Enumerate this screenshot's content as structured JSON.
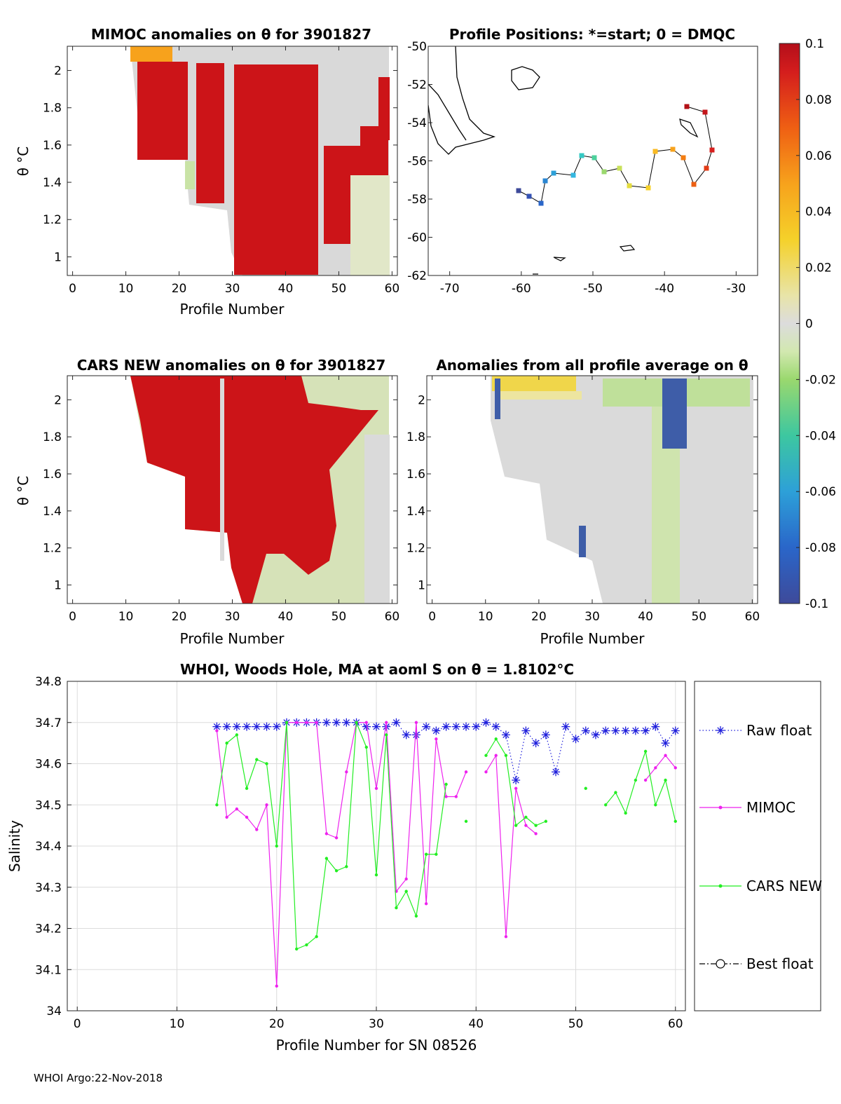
{
  "footer": "WHOI Argo:22-Nov-2018",
  "colors": {
    "raw_float": "#1f1fdc",
    "mimoc": "#ee22ee",
    "cars_new": "#22ee22",
    "best_float": "#000000"
  },
  "panels": {
    "mimoc": {
      "title": "MIMOC anomalies on θ  for 3901827",
      "xlabel": "Profile Number",
      "ylabel": "θ °C",
      "xticks": [
        "0",
        "10",
        "20",
        "30",
        "40",
        "50",
        "60"
      ],
      "yticks": [
        "1",
        "1.2",
        "1.4",
        "1.6",
        "1.8",
        "2"
      ],
      "xlim": [
        -1,
        61
      ],
      "ylim": [
        0.9,
        2.13
      ]
    },
    "map": {
      "title": "Profile Positions: *=start; 0 = DMQC",
      "xticks": [
        "-70",
        "-60",
        "-50",
        "-40",
        "-30"
      ],
      "yticks": [
        "-50",
        "-52",
        "-54",
        "-56",
        "-58",
        "-60",
        "-62"
      ],
      "xlim": [
        -73,
        -27
      ],
      "ylim": [
        -62,
        -50
      ]
    },
    "cars": {
      "title": "CARS NEW anomalies on θ for 3901827",
      "xlabel": "Profile Number",
      "ylabel": "θ °C",
      "xticks": [
        "0",
        "10",
        "20",
        "30",
        "40",
        "50",
        "60"
      ],
      "yticks": [
        "1",
        "1.2",
        "1.4",
        "1.6",
        "1.8",
        "2"
      ],
      "xlim": [
        -1,
        61
      ],
      "ylim": [
        0.9,
        2.13
      ]
    },
    "avg": {
      "title": "Anomalies from all profile average on θ",
      "xlabel": "Profile Number",
      "xticks": [
        "0",
        "10",
        "20",
        "30",
        "40",
        "50",
        "60"
      ],
      "yticks": [
        "1",
        "1.2",
        "1.4",
        "1.6",
        "1.8",
        "2"
      ],
      "xlim": [
        -1,
        61
      ],
      "ylim": [
        0.9,
        2.13
      ]
    }
  },
  "colorbar": {
    "ticks": [
      "0.1",
      "0.08",
      "0.06",
      "0.04",
      "0.02",
      "0",
      "-0.02",
      "-0.04",
      "-0.06",
      "-0.08",
      "-0.1"
    ],
    "range": [
      -0.1,
      0.1
    ]
  },
  "chart_data": {
    "type": "line",
    "title": "WHOI, Woods Hole, MA at aoml S on θ = 1.8102°C",
    "xlabel": "Profile Number for SN 08526",
    "ylabel": "Salinity",
    "xlim": [
      -1,
      61
    ],
    "ylim": [
      34.0,
      34.8
    ],
    "xticks": [
      "0",
      "10",
      "20",
      "30",
      "40",
      "50",
      "60"
    ],
    "yticks": [
      "34",
      "34.1",
      "34.2",
      "34.3",
      "34.4",
      "34.5",
      "34.6",
      "34.7",
      "34.8"
    ],
    "grid": true,
    "legend_position": "outside-right",
    "series": [
      {
        "name": "Raw float",
        "style": "dotted-star",
        "x": [
          14,
          15,
          16,
          17,
          18,
          19,
          20,
          21,
          22,
          23,
          24,
          25,
          26,
          27,
          28,
          29,
          30,
          31,
          32,
          33,
          34,
          35,
          36,
          37,
          38,
          39,
          40,
          41,
          42,
          43,
          44,
          45,
          46,
          47,
          48,
          49,
          50,
          51,
          52,
          53,
          54,
          55,
          56,
          57,
          58,
          59,
          60
        ],
        "y": [
          34.69,
          34.69,
          34.69,
          34.69,
          34.69,
          34.69,
          34.69,
          34.7,
          34.7,
          34.7,
          34.7,
          34.7,
          34.7,
          34.7,
          34.7,
          34.69,
          34.69,
          34.69,
          34.7,
          34.67,
          34.67,
          34.69,
          34.68,
          34.69,
          34.69,
          34.69,
          34.69,
          34.7,
          34.69,
          34.67,
          34.56,
          34.68,
          34.65,
          34.67,
          34.58,
          34.69,
          34.66,
          34.68,
          34.67,
          34.68,
          34.68,
          34.68,
          34.68,
          34.68,
          34.69,
          34.65,
          34.68
        ]
      },
      {
        "name": "MIMOC",
        "style": "solid-dot",
        "x": [
          14,
          15,
          16,
          17,
          18,
          19,
          20,
          21,
          22,
          23,
          24,
          25,
          26,
          27,
          28,
          29,
          30,
          31,
          32,
          33,
          34,
          35,
          36,
          37,
          38,
          39,
          40,
          41,
          42,
          43,
          44,
          45,
          46,
          47,
          48,
          49,
          50,
          51,
          52,
          53,
          54,
          55,
          56,
          57,
          58,
          59,
          60
        ],
        "y": [
          34.68,
          34.47,
          34.49,
          34.47,
          34.44,
          34.5,
          34.06,
          34.7,
          34.7,
          34.7,
          34.7,
          34.43,
          34.42,
          34.58,
          34.7,
          34.7,
          34.54,
          34.7,
          34.29,
          34.32,
          34.7,
          34.26,
          34.66,
          34.52,
          34.52,
          34.58,
          null,
          34.58,
          34.62,
          34.18,
          34.54,
          34.45,
          34.43,
          null,
          null,
          null,
          null,
          null,
          null,
          null,
          null,
          null,
          null,
          34.56,
          34.59,
          34.62,
          34.59
        ]
      },
      {
        "name": "CARS NEW",
        "style": "solid-dot",
        "x": [
          14,
          15,
          16,
          17,
          18,
          19,
          20,
          21,
          22,
          23,
          24,
          25,
          26,
          27,
          28,
          29,
          30,
          31,
          32,
          33,
          34,
          35,
          36,
          37,
          38,
          39,
          40,
          41,
          42,
          43,
          44,
          45,
          46,
          47,
          48,
          49,
          50,
          51,
          52,
          53,
          54,
          55,
          56,
          57,
          58,
          59,
          60
        ],
        "y": [
          34.5,
          34.65,
          34.67,
          34.54,
          34.61,
          34.6,
          34.4,
          34.7,
          34.15,
          34.16,
          34.18,
          34.37,
          34.34,
          34.35,
          34.7,
          34.64,
          34.33,
          34.67,
          34.25,
          34.29,
          34.23,
          34.38,
          34.38,
          34.55,
          null,
          34.46,
          null,
          34.62,
          34.66,
          34.62,
          34.45,
          34.47,
          34.45,
          34.46,
          null,
          null,
          null,
          34.54,
          null,
          34.5,
          34.53,
          34.48,
          34.56,
          34.63,
          34.5,
          34.56,
          34.46
        ]
      },
      {
        "name": "Best float",
        "style": "dashdot-circle",
        "x": [],
        "y": []
      }
    ]
  }
}
